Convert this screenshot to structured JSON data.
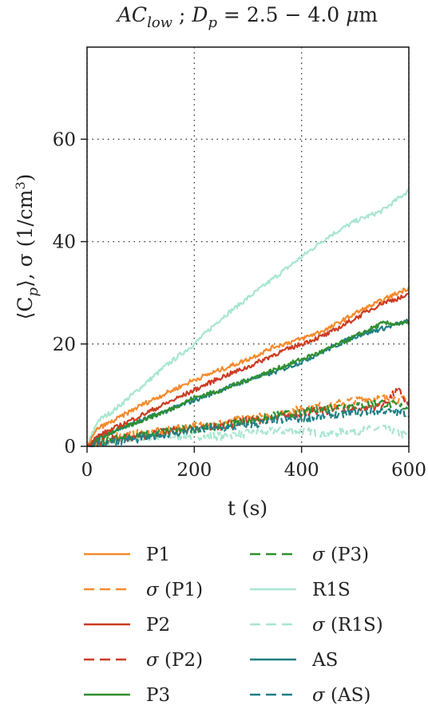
{
  "chart_data": {
    "type": "line",
    "title": {
      "main": "AC",
      "main_sub": "low",
      "sep": " ; ",
      "dp": "D",
      "dp_sub": "p",
      "rest": " = 2.5 − 4.0 ",
      "mu": "μ",
      "unit": "m"
    },
    "xlabel": "t (s)",
    "ylabel": "⟨C_p⟩, σ (1/cm³)",
    "xlim": [
      0,
      600
    ],
    "ylim": [
      0,
      78
    ],
    "xticks": [
      0,
      200,
      400,
      600
    ],
    "yticks": [
      0,
      20,
      40,
      60
    ],
    "grid": true,
    "legend_position": "below",
    "series": [
      {
        "name": "P1",
        "color": "#f58a2c",
        "dash": "solid",
        "x": [
          0,
          20,
          50,
          100,
          150,
          200,
          250,
          300,
          350,
          400,
          450,
          500,
          550,
          600
        ],
        "y": [
          0,
          3.5,
          5,
          8,
          10.5,
          13,
          15,
          17,
          19.5,
          21,
          23,
          26,
          28.5,
          31
        ]
      },
      {
        "name": "σ (P1)",
        "color": "#f58a2c",
        "dash": "dashed",
        "x": [
          0,
          20,
          50,
          100,
          150,
          200,
          250,
          300,
          350,
          400,
          450,
          500,
          550,
          600
        ],
        "y": [
          0,
          1,
          2,
          2.5,
          3,
          4,
          4.5,
          5.5,
          6,
          7.5,
          8,
          9,
          9.5,
          9
        ]
      },
      {
        "name": "P2",
        "color": "#cc3b22",
        "dash": "solid",
        "x": [
          0,
          20,
          50,
          100,
          150,
          200,
          250,
          300,
          350,
          400,
          450,
          500,
          550,
          600
        ],
        "y": [
          0,
          2,
          3.5,
          6,
          8.5,
          11,
          13.5,
          15.5,
          18,
          20,
          22,
          25,
          28,
          29.5
        ]
      },
      {
        "name": "σ (P2)",
        "color": "#cc3b22",
        "dash": "dashed",
        "x": [
          0,
          20,
          50,
          100,
          150,
          200,
          250,
          300,
          350,
          400,
          450,
          500,
          550,
          580,
          600
        ],
        "y": [
          0,
          1,
          1.5,
          2,
          3,
          3.5,
          4,
          5,
          5.5,
          6.5,
          7,
          7.5,
          8,
          11,
          8
        ]
      },
      {
        "name": "P3",
        "color": "#2f8f2f",
        "dash": "solid",
        "x": [
          0,
          20,
          50,
          100,
          150,
          200,
          250,
          300,
          350,
          400,
          450,
          500,
          550,
          600
        ],
        "y": [
          0,
          1.5,
          3,
          5,
          7,
          9.5,
          11,
          13,
          15,
          17,
          19,
          21.5,
          24,
          24
        ]
      },
      {
        "name": "σ (P3)",
        "color": "#2f8f2f",
        "dash": "dashed",
        "x": [
          0,
          20,
          50,
          100,
          150,
          200,
          250,
          300,
          350,
          400,
          450,
          500,
          550,
          600
        ],
        "y": [
          0,
          0.5,
          1.5,
          2,
          3,
          3.5,
          4,
          5,
          6,
          6.5,
          7.5,
          8,
          8.5,
          7.5
        ]
      },
      {
        "name": "R1S",
        "color": "#a8e6cf",
        "dash": "solid",
        "x": [
          0,
          20,
          50,
          100,
          150,
          200,
          250,
          300,
          350,
          400,
          450,
          500,
          550,
          600
        ],
        "y": [
          0,
          5,
          7,
          11.5,
          16,
          20,
          25,
          29,
          33,
          37,
          41,
          44,
          46,
          50
        ]
      },
      {
        "name": "σ (R1S)",
        "color": "#a8e6cf",
        "dash": "dashed",
        "x": [
          0,
          20,
          50,
          100,
          150,
          200,
          250,
          300,
          350,
          400,
          450,
          500,
          550,
          600
        ],
        "y": [
          0,
          0.5,
          1,
          1.5,
          2,
          2,
          2,
          2.5,
          3,
          3,
          2.5,
          3,
          3.5,
          2
        ]
      },
      {
        "name": "AS",
        "color": "#1f7f86",
        "dash": "solid",
        "x": [
          0,
          20,
          50,
          100,
          150,
          200,
          250,
          300,
          350,
          400,
          450,
          500,
          550,
          600
        ],
        "y": [
          0,
          1.5,
          3,
          5,
          7,
          9,
          11,
          13,
          14.5,
          16.5,
          19,
          21.5,
          23,
          24.5
        ]
      },
      {
        "name": "σ (AS)",
        "color": "#1f7f86",
        "dash": "dashed",
        "x": [
          0,
          20,
          50,
          100,
          150,
          200,
          250,
          300,
          350,
          400,
          450,
          500,
          550,
          600
        ],
        "y": [
          0,
          0.5,
          1,
          1.5,
          2.5,
          3,
          3.5,
          4,
          5,
          5.5,
          6,
          6.5,
          7,
          6.5
        ]
      }
    ]
  }
}
